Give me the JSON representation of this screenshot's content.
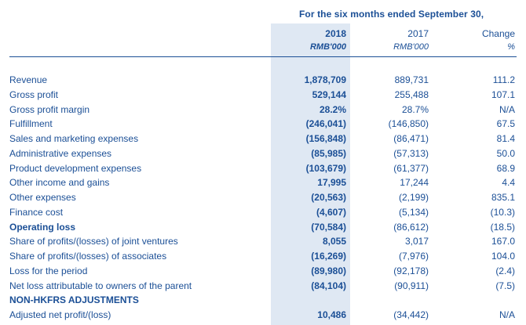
{
  "header": {
    "period": "For the six months ended September 30,",
    "col_2018": "2018",
    "col_2017": "2017",
    "col_change": "Change",
    "unit_2018": "RMB'000",
    "unit_2017": "RMB'000",
    "unit_change": "%"
  },
  "rows": [
    {
      "label": "Revenue",
      "v2018": "1,878,709",
      "v2017": "889,731",
      "change": "111.2",
      "bold": false
    },
    {
      "label": "Gross profit",
      "v2018": "529,144",
      "v2017": "255,488",
      "change": "107.1",
      "bold": false
    },
    {
      "label": "Gross profit margin",
      "v2018": "28.2%",
      "v2017": "28.7%",
      "change": "N/A",
      "bold": false
    },
    {
      "label": "Fulfillment",
      "v2018": "(246,041)",
      "v2017": "(146,850)",
      "change": "67.5",
      "bold": false
    },
    {
      "label": "Sales and marketing expenses",
      "v2018": "(156,848)",
      "v2017": "(86,471)",
      "change": "81.4",
      "bold": false
    },
    {
      "label": "Administrative expenses",
      "v2018": "(85,985)",
      "v2017": "(57,313)",
      "change": "50.0",
      "bold": false
    },
    {
      "label": "Product development expenses",
      "v2018": "(103,679)",
      "v2017": "(61,377)",
      "change": "68.9",
      "bold": false
    },
    {
      "label": "Other income and gains",
      "v2018": "17,995",
      "v2017": "17,244",
      "change": "4.4",
      "bold": false
    },
    {
      "label": "Other expenses",
      "v2018": "(20,563)",
      "v2017": "(2,199)",
      "change": "835.1",
      "bold": false
    },
    {
      "label": "Finance cost",
      "v2018": "(4,607)",
      "v2017": "(5,134)",
      "change": "(10.3)",
      "bold": false
    },
    {
      "label": "Operating loss",
      "v2018": "(70,584)",
      "v2017": "(86,612)",
      "change": "(18.5)",
      "bold": true
    },
    {
      "label": "Share of profits/(losses) of joint ventures",
      "v2018": "8,055",
      "v2017": "3,017",
      "change": "167.0",
      "bold": false
    },
    {
      "label": "Share of profits/(losses) of associates",
      "v2018": "(16,269)",
      "v2017": "(7,976)",
      "change": "104.0",
      "bold": false
    },
    {
      "label": "Loss for the period",
      "v2018": "(89,980)",
      "v2017": "(92,178)",
      "change": "(2.4)",
      "bold": false
    },
    {
      "label": "Net loss attributable to owners of the parent",
      "v2018": "(84,104)",
      "v2017": "(90,911)",
      "change": "(7.5)",
      "bold": false
    },
    {
      "label": "NON-HKFRS ADJUSTMENTS",
      "v2018": "",
      "v2017": "",
      "change": "",
      "bold": true
    },
    {
      "label": "Adjusted net profit/(loss)",
      "v2018": "10,486",
      "v2017": "(34,442)",
      "change": "N/A",
      "bold": false
    }
  ]
}
